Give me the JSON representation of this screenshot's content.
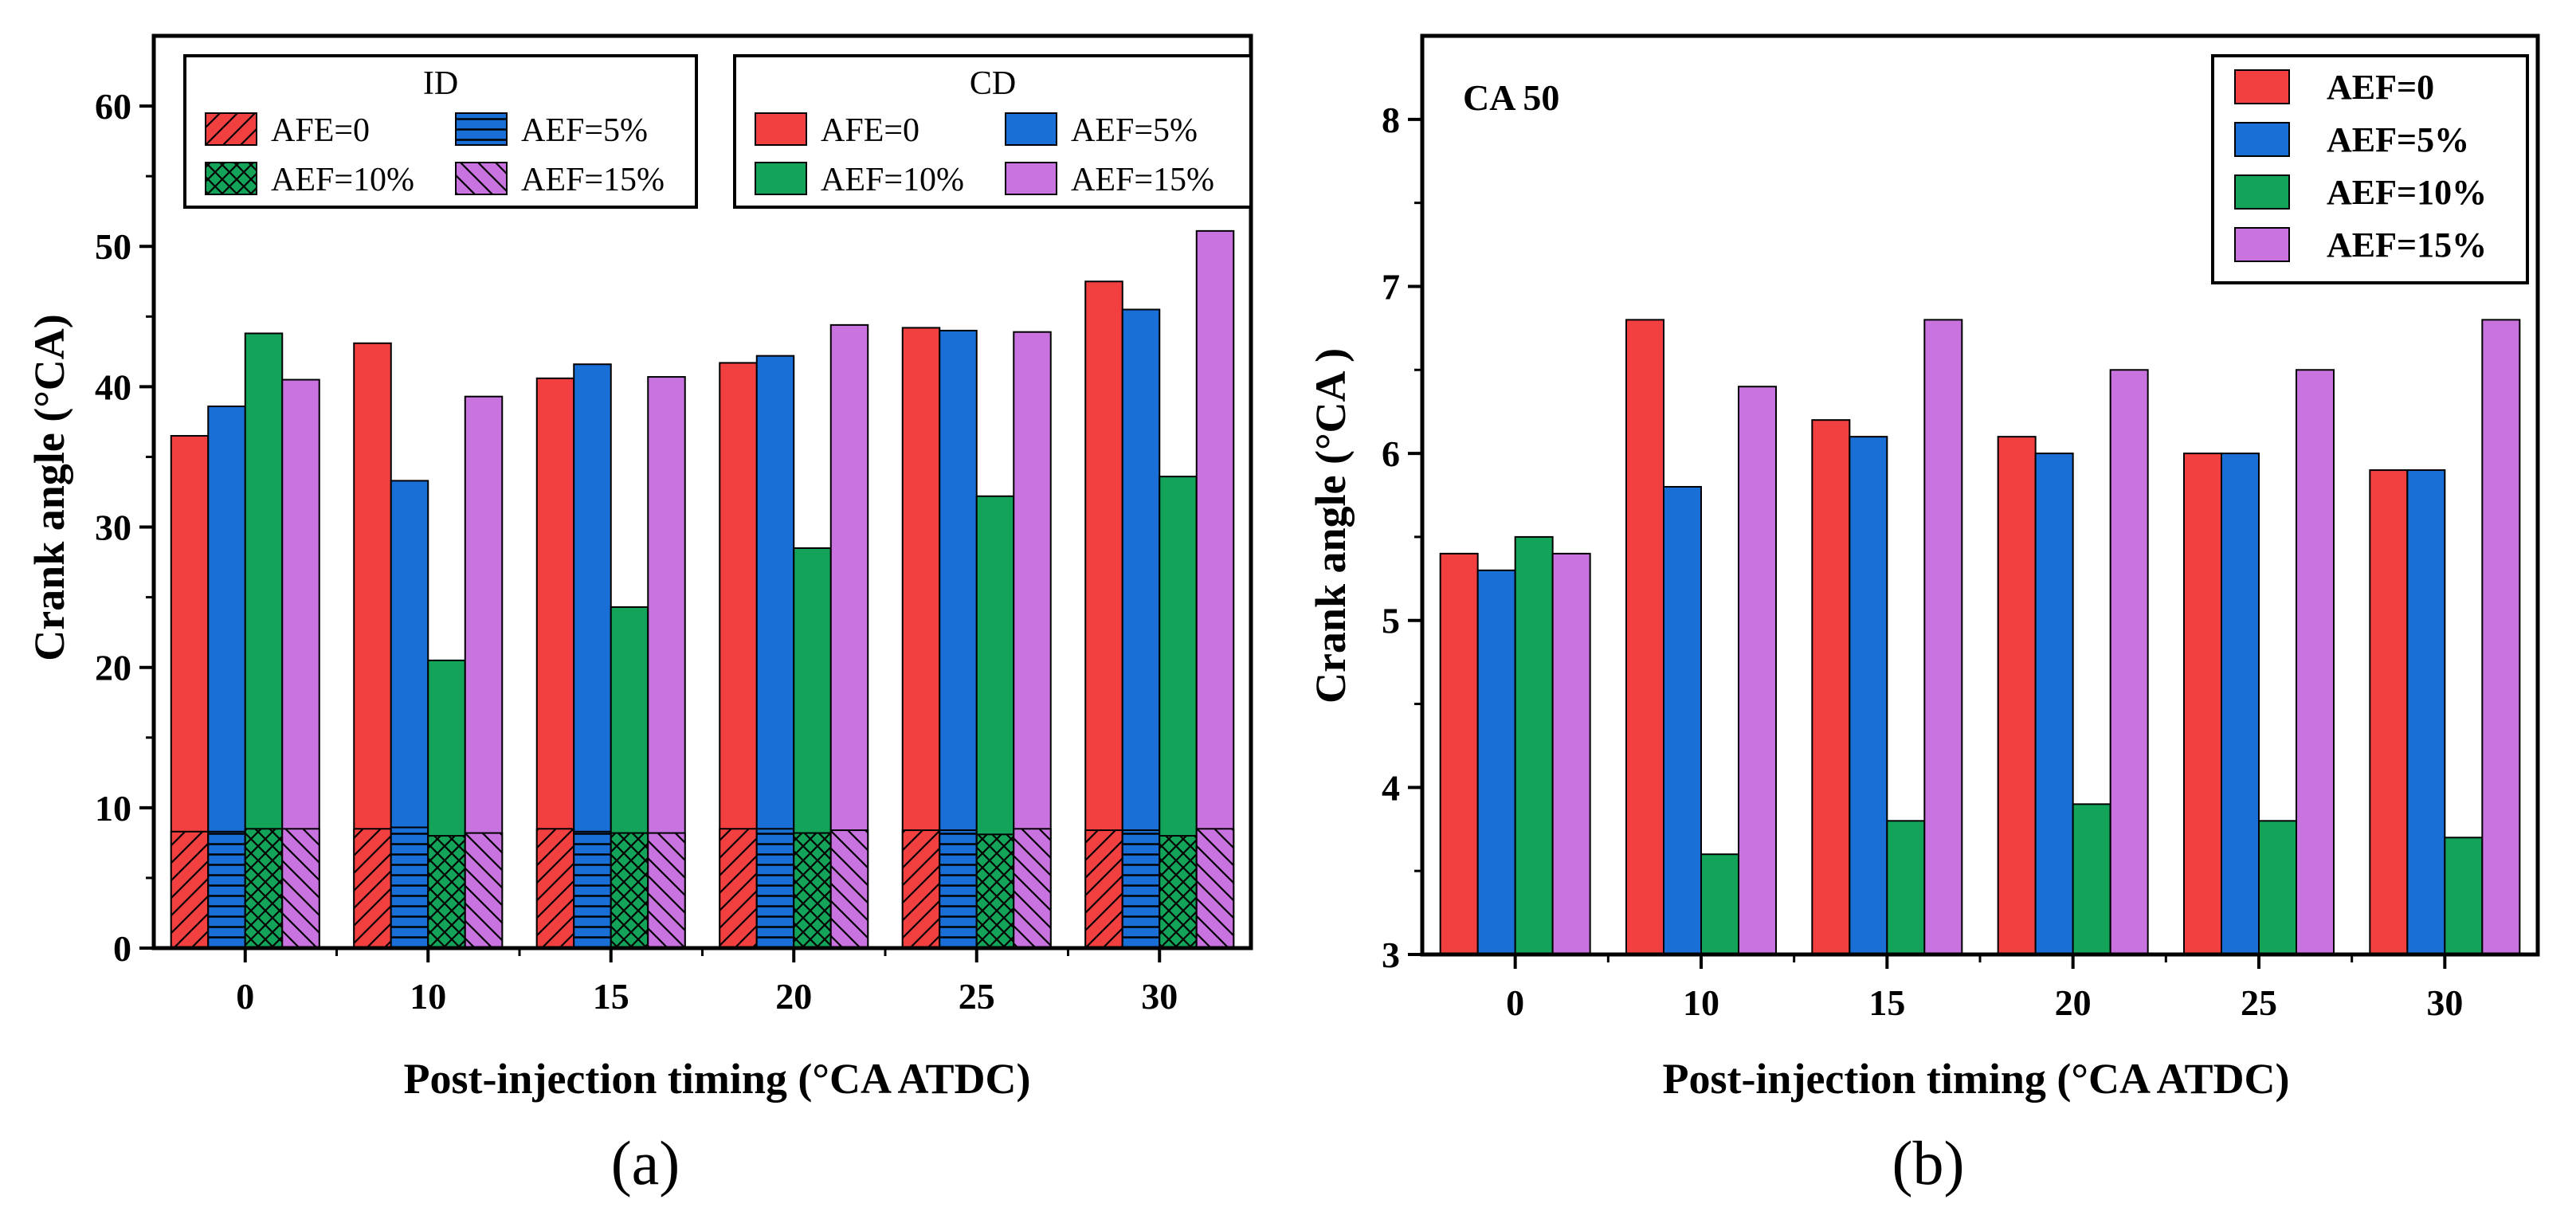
{
  "chart_data": [
    {
      "panel": "a",
      "type": "bar",
      "caption": "(a)",
      "xlabel": "Post-injection timing (°CA ATDC)",
      "ylabel": "Crank angle (°CA)",
      "ylim": [
        0,
        65
      ],
      "yticks": [
        "0",
        "10",
        "20",
        "30",
        "40",
        "50",
        "60"
      ],
      "categories": [
        "0",
        "10",
        "15",
        "20",
        "25",
        "30"
      ],
      "legend_groups": [
        {
          "title": "ID",
          "placement": "top-left",
          "labels": [
            "AFE=0",
            "AEF=5%",
            "AEF=10%",
            "AEF=15%"
          ]
        },
        {
          "title": "CD",
          "placement": "top-right",
          "labels": [
            "AFE=0",
            "AEF=5%",
            "AEF=10%",
            "AEF=15%"
          ]
        }
      ],
      "series": [
        {
          "name": "AFE=0",
          "color": "#f24040",
          "id_values": [
            8.3,
            8.5,
            8.5,
            8.5,
            8.4,
            8.4
          ],
          "cd_values": [
            36.5,
            43.1,
            40.6,
            41.7,
            44.2,
            47.5
          ]
        },
        {
          "name": "AEF=5%",
          "color": "#1a6fd6",
          "id_values": [
            8.3,
            8.6,
            8.3,
            8.5,
            8.4,
            8.4
          ],
          "cd_values": [
            38.6,
            33.3,
            41.6,
            42.2,
            44.0,
            45.5
          ]
        },
        {
          "name": "AEF=10%",
          "color": "#13a45a",
          "id_values": [
            8.5,
            8.0,
            8.2,
            8.2,
            8.1,
            8.0
          ],
          "cd_values": [
            43.8,
            20.5,
            24.3,
            28.5,
            32.2,
            33.6
          ]
        },
        {
          "name": "AEF=15%",
          "color": "#c873e0",
          "id_values": [
            8.5,
            8.2,
            8.2,
            8.4,
            8.5,
            8.5
          ],
          "cd_values": [
            40.5,
            39.3,
            40.7,
            44.4,
            43.9,
            51.1
          ]
        }
      ]
    },
    {
      "panel": "b",
      "type": "bar",
      "caption": "(b)",
      "title": "CA 50",
      "xlabel": "Post-injection timing (°CA ATDC)",
      "ylabel": "Crank angle (°CA )",
      "ylim": [
        3,
        8.5
      ],
      "yticks": [
        "3",
        "4",
        "5",
        "6",
        "7",
        "8"
      ],
      "categories": [
        "0",
        "10",
        "15",
        "20",
        "25",
        "30"
      ],
      "legend": "top-right",
      "series": [
        {
          "name": "AEF=0",
          "color": "#f24040",
          "values": [
            5.4,
            6.8,
            6.2,
            6.1,
            6.0,
            5.9
          ]
        },
        {
          "name": "AEF=5%",
          "color": "#1a6fd6",
          "values": [
            5.3,
            5.8,
            6.1,
            6.0,
            6.0,
            5.9
          ]
        },
        {
          "name": "AEF=10%",
          "color": "#13a45a",
          "values": [
            5.5,
            3.6,
            3.8,
            3.9,
            3.8,
            3.7
          ]
        },
        {
          "name": "AEF=15%",
          "color": "#c873e0",
          "values": [
            5.4,
            6.4,
            6.8,
            6.5,
            6.5,
            6.8
          ]
        }
      ]
    }
  ]
}
